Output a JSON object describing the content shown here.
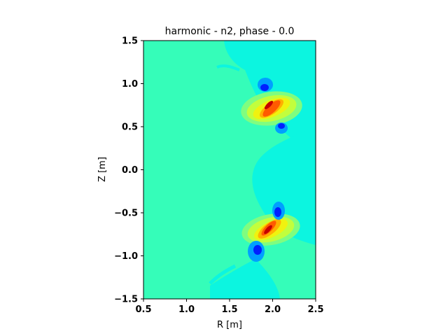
{
  "chart_data": {
    "type": "heatmap",
    "title": "harmonic - n2, phase - 0.0",
    "xlabel": "R [m]",
    "ylabel": "Z [m]",
    "xlim": [
      0.5,
      2.5
    ],
    "ylim": [
      -1.5,
      1.5
    ],
    "x_ticks": [
      0.5,
      1.0,
      1.5,
      2.0,
      2.5
    ],
    "y_ticks": [
      -1.5,
      -1.0,
      -0.5,
      0.0,
      0.5,
      1.0,
      1.5
    ],
    "x_tick_labels": [
      "0.5",
      "1.0",
      "1.5",
      "2.0",
      "2.5"
    ],
    "y_tick_labels": [
      "−1.5",
      "−1.0",
      "−0.5",
      "0.0",
      "0.5",
      "1.0",
      "1.5"
    ],
    "colormap": "jet",
    "background_level_color": "#35fdb9",
    "secondary_level_color": "#0cf5e0",
    "grid": false,
    "legend": "none",
    "features": [
      {
        "name": "upper-lobe",
        "center": [
          1.97,
          0.72
        ],
        "peak": "positive"
      },
      {
        "name": "upper-negative-top",
        "center": [
          1.88,
          0.97
        ],
        "peak": "negative"
      },
      {
        "name": "upper-negative-bottom",
        "center": [
          2.09,
          0.51
        ],
        "peak": "negative"
      },
      {
        "name": "lower-lobe",
        "center": [
          1.97,
          -0.7
        ],
        "peak": "positive"
      },
      {
        "name": "lower-negative-top",
        "center": [
          2.07,
          -0.46
        ],
        "peak": "negative"
      },
      {
        "name": "lower-negative-bottom",
        "center": [
          1.83,
          -0.95
        ],
        "peak": "negative"
      }
    ]
  }
}
